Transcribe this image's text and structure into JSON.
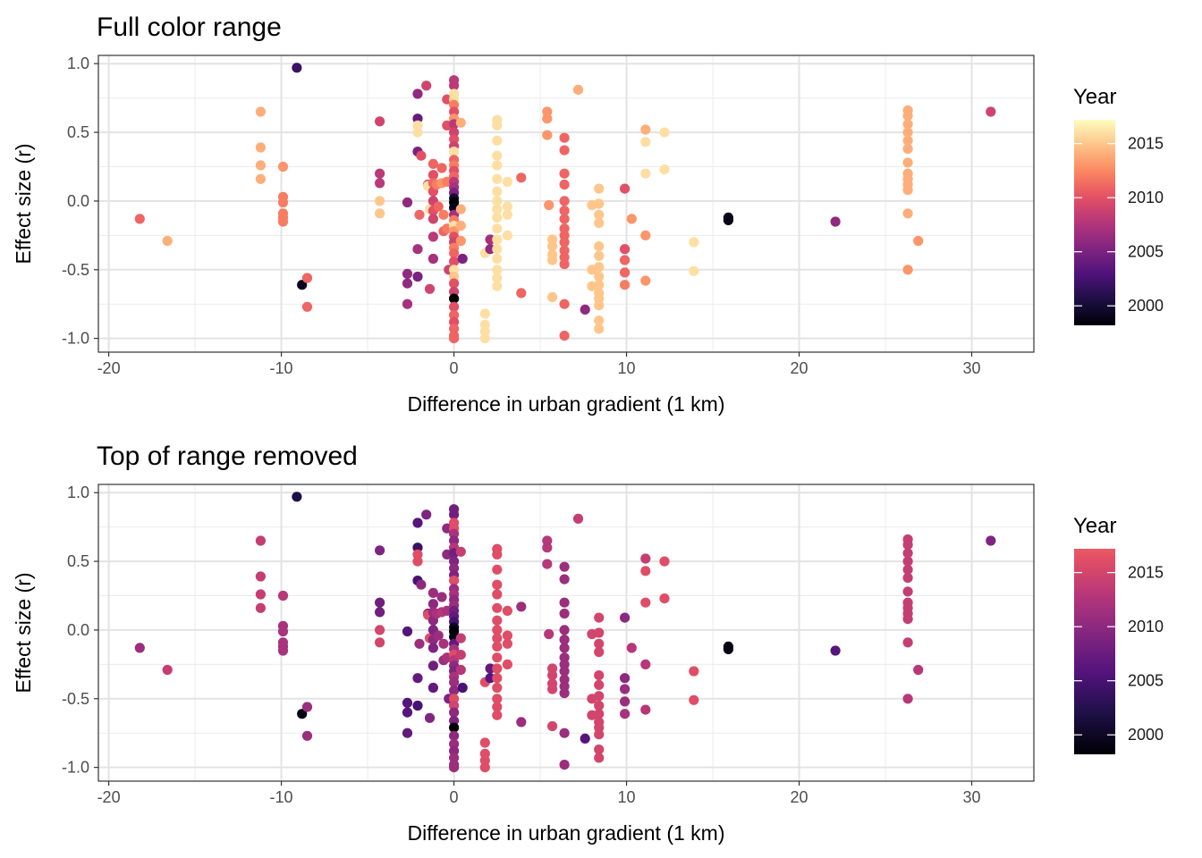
{
  "chart_data": [
    {
      "type": "scatter",
      "title": "Full color range",
      "xlabel": "Difference in urban gradient (1 km)",
      "ylabel": "Effect size (r)",
      "xlim": [
        -20.6,
        33.6
      ],
      "ylim": [
        -1.1,
        1.06
      ],
      "x_ticks": [
        "-20",
        "-10",
        "0",
        "10",
        "20",
        "30"
      ],
      "y_ticks": [
        "-1.0",
        "-0.5",
        "0.0",
        "0.5",
        "1.0"
      ],
      "grid": true,
      "legend": {
        "title": "Year",
        "position": "right",
        "ticks": [
          "2000",
          "2005",
          "2010",
          "2015"
        ],
        "range": [
          1998.2,
          2017.2
        ],
        "palette": "magma",
        "palette_end": 1.0
      },
      "points": [
        {
          "x": -18.2,
          "y": -0.13,
          "year": 2011
        },
        {
          "x": -16.6,
          "y": -0.29,
          "year": 2014
        },
        {
          "x": -11.2,
          "y": 0.65,
          "year": 2014
        },
        {
          "x": -11.2,
          "y": 0.39,
          "year": 2014
        },
        {
          "x": -11.2,
          "y": 0.26,
          "year": 2014
        },
        {
          "x": -11.2,
          "y": 0.16,
          "year": 2014
        },
        {
          "x": -9.9,
          "y": 0.25,
          "year": 2013
        },
        {
          "x": -9.9,
          "y": 0.03,
          "year": 2012
        },
        {
          "x": -9.9,
          "y": -0.01,
          "year": 2012
        },
        {
          "x": -9.9,
          "y": -0.09,
          "year": 2012
        },
        {
          "x": -9.9,
          "y": -0.12,
          "year": 2012
        },
        {
          "x": -9.9,
          "y": -0.15,
          "year": 2012
        },
        {
          "x": -9.1,
          "y": 0.97,
          "year": 2002
        },
        {
          "x": -8.8,
          "y": -0.61,
          "year": 1999
        },
        {
          "x": -8.5,
          "y": -0.56,
          "year": 2011
        },
        {
          "x": -8.5,
          "y": -0.77,
          "year": 2011
        },
        {
          "x": -4.3,
          "y": 0.58,
          "year": 2009
        },
        {
          "x": -4.3,
          "y": 0.2,
          "year": 2008
        },
        {
          "x": -4.3,
          "y": 0.13,
          "year": 2008
        },
        {
          "x": -4.3,
          "y": 0.0,
          "year": 2015
        },
        {
          "x": -4.3,
          "y": -0.09,
          "year": 2015
        },
        {
          "x": -2.7,
          "y": -0.01,
          "year": 2006
        },
        {
          "x": -2.7,
          "y": -0.53,
          "year": 2006
        },
        {
          "x": -2.7,
          "y": -0.6,
          "year": 2006
        },
        {
          "x": -2.7,
          "y": -0.75,
          "year": 2007
        },
        {
          "x": -2.1,
          "y": 0.78,
          "year": 2006
        },
        {
          "x": -2.1,
          "y": 0.6,
          "year": 2004
        },
        {
          "x": -2.1,
          "y": 0.55,
          "year": 2016
        },
        {
          "x": -2.1,
          "y": 0.5,
          "year": 2016
        },
        {
          "x": -2.1,
          "y": 0.36,
          "year": 2005
        },
        {
          "x": -2.1,
          "y": -0.35,
          "year": 2007
        },
        {
          "x": -2.1,
          "y": -0.55,
          "year": 2005
        },
        {
          "x": -2.0,
          "y": -0.1,
          "year": 2011
        },
        {
          "x": -1.9,
          "y": 0.33,
          "year": 2010
        },
        {
          "x": -1.6,
          "y": 0.84,
          "year": 2009
        },
        {
          "x": -1.5,
          "y": 0.12,
          "year": 2009
        },
        {
          "x": -1.5,
          "y": 0.11,
          "year": 2016
        },
        {
          "x": -1.4,
          "y": -0.06,
          "year": 2016
        },
        {
          "x": -1.4,
          "y": -0.64,
          "year": 2009
        },
        {
          "x": -1.2,
          "y": 0.27,
          "year": 2011
        },
        {
          "x": -1.2,
          "y": 0.19,
          "year": 2010
        },
        {
          "x": -1.2,
          "y": 0.13,
          "year": 2011
        },
        {
          "x": -1.2,
          "y": 0.07,
          "year": 2010
        },
        {
          "x": -1.2,
          "y": 0.0,
          "year": 2009
        },
        {
          "x": -1.2,
          "y": -0.07,
          "year": 2010
        },
        {
          "x": -1.2,
          "y": -0.13,
          "year": 2009
        },
        {
          "x": -1.2,
          "y": -0.26,
          "year": 2008
        },
        {
          "x": -1.2,
          "y": -0.42,
          "year": 2007
        },
        {
          "x": -1.0,
          "y": 0.12,
          "year": 2012
        },
        {
          "x": -0.9,
          "y": -0.04,
          "year": 2011
        },
        {
          "x": -0.7,
          "y": 0.24,
          "year": 2011
        },
        {
          "x": -0.7,
          "y": 0.13,
          "year": 2013
        },
        {
          "x": -0.6,
          "y": -0.1,
          "year": 2012
        },
        {
          "x": -0.6,
          "y": -0.22,
          "year": 2011
        },
        {
          "x": -0.4,
          "y": 0.74,
          "year": 2010
        },
        {
          "x": -0.4,
          "y": 0.55,
          "year": 2010
        },
        {
          "x": -0.4,
          "y": 0.14,
          "year": 2012
        },
        {
          "x": -0.4,
          "y": -0.2,
          "year": 2012
        },
        {
          "x": -0.3,
          "y": -0.5,
          "year": 2009
        },
        {
          "x": 0.0,
          "y": 0.88,
          "year": 2008
        },
        {
          "x": 0.0,
          "y": 0.84,
          "year": 2008
        },
        {
          "x": 0.0,
          "y": 0.78,
          "year": 2016
        },
        {
          "x": 0.0,
          "y": 0.74,
          "year": 2016
        },
        {
          "x": 0.0,
          "y": 0.7,
          "year": 2012
        },
        {
          "x": 0.0,
          "y": 0.65,
          "year": 2010
        },
        {
          "x": 0.0,
          "y": 0.6,
          "year": 2013
        },
        {
          "x": 0.0,
          "y": 0.56,
          "year": 2008
        },
        {
          "x": 0.0,
          "y": 0.5,
          "year": 2009
        },
        {
          "x": 0.0,
          "y": 0.45,
          "year": 2010
        },
        {
          "x": 0.0,
          "y": 0.4,
          "year": 2009
        },
        {
          "x": 0.0,
          "y": 0.36,
          "year": 2016
        },
        {
          "x": 0.0,
          "y": 0.3,
          "year": 2011
        },
        {
          "x": 0.0,
          "y": 0.26,
          "year": 2012
        },
        {
          "x": 0.0,
          "y": 0.22,
          "year": 2010
        },
        {
          "x": 0.0,
          "y": 0.18,
          "year": 2011
        },
        {
          "x": 0.0,
          "y": 0.14,
          "year": 2008
        },
        {
          "x": 0.0,
          "y": 0.1,
          "year": 2007
        },
        {
          "x": 0.0,
          "y": 0.06,
          "year": 2005
        },
        {
          "x": 0.0,
          "y": 0.02,
          "year": 2000
        },
        {
          "x": 0.0,
          "y": -0.01,
          "year": 1998
        },
        {
          "x": 0.0,
          "y": -0.05,
          "year": 1999
        },
        {
          "x": 0.0,
          "y": -0.1,
          "year": 2007
        },
        {
          "x": 0.0,
          "y": -0.14,
          "year": 2012
        },
        {
          "x": 0.0,
          "y": -0.18,
          "year": 2016
        },
        {
          "x": 0.0,
          "y": -0.22,
          "year": 2013
        },
        {
          "x": 0.0,
          "y": -0.26,
          "year": 2010
        },
        {
          "x": 0.0,
          "y": -0.3,
          "year": 2009
        },
        {
          "x": 0.0,
          "y": -0.34,
          "year": 2012
        },
        {
          "x": 0.0,
          "y": -0.38,
          "year": 2011
        },
        {
          "x": 0.0,
          "y": -0.44,
          "year": 2010
        },
        {
          "x": 0.0,
          "y": -0.5,
          "year": 2016
        },
        {
          "x": 0.0,
          "y": -0.55,
          "year": 2015
        },
        {
          "x": 0.0,
          "y": -0.6,
          "year": 2010
        },
        {
          "x": 0.0,
          "y": -0.66,
          "year": 2009
        },
        {
          "x": 0.0,
          "y": -0.71,
          "year": 1998
        },
        {
          "x": 0.0,
          "y": -0.77,
          "year": 2010
        },
        {
          "x": 0.0,
          "y": -0.83,
          "year": 2011
        },
        {
          "x": 0.0,
          "y": -0.88,
          "year": 2010
        },
        {
          "x": 0.0,
          "y": -0.93,
          "year": 2011
        },
        {
          "x": 0.0,
          "y": -0.98,
          "year": 2011
        },
        {
          "x": 0.0,
          "y": -1.0,
          "year": 2011
        },
        {
          "x": 0.4,
          "y": 0.57,
          "year": 2014
        },
        {
          "x": 0.4,
          "y": -0.06,
          "year": 2014
        },
        {
          "x": 0.4,
          "y": -0.18,
          "year": 2014
        },
        {
          "x": 0.4,
          "y": -0.29,
          "year": 2013
        },
        {
          "x": 0.5,
          "y": -0.42,
          "year": 2005
        },
        {
          "x": 1.8,
          "y": -0.38,
          "year": 2016
        },
        {
          "x": 1.8,
          "y": -0.82,
          "year": 2016
        },
        {
          "x": 1.8,
          "y": -0.9,
          "year": 2016
        },
        {
          "x": 1.8,
          "y": -0.95,
          "year": 2016
        },
        {
          "x": 1.8,
          "y": -1.0,
          "year": 2016
        },
        {
          "x": 2.1,
          "y": -0.28,
          "year": 2007
        },
        {
          "x": 2.1,
          "y": -0.35,
          "year": 2006
        },
        {
          "x": 2.5,
          "y": 0.59,
          "year": 2016
        },
        {
          "x": 2.5,
          "y": 0.55,
          "year": 2016
        },
        {
          "x": 2.5,
          "y": 0.44,
          "year": 2016
        },
        {
          "x": 2.5,
          "y": 0.33,
          "year": 2016
        },
        {
          "x": 2.5,
          "y": 0.26,
          "year": 2016
        },
        {
          "x": 2.5,
          "y": 0.16,
          "year": 2016
        },
        {
          "x": 2.5,
          "y": 0.07,
          "year": 2016
        },
        {
          "x": 2.5,
          "y": 0.0,
          "year": 2016
        },
        {
          "x": 2.5,
          "y": -0.06,
          "year": 2016
        },
        {
          "x": 2.5,
          "y": -0.12,
          "year": 2016
        },
        {
          "x": 2.5,
          "y": -0.2,
          "year": 2016
        },
        {
          "x": 2.5,
          "y": -0.28,
          "year": 2016
        },
        {
          "x": 2.5,
          "y": -0.35,
          "year": 2016
        },
        {
          "x": 2.5,
          "y": -0.42,
          "year": 2016
        },
        {
          "x": 2.5,
          "y": -0.5,
          "year": 2016
        },
        {
          "x": 2.5,
          "y": -0.56,
          "year": 2016
        },
        {
          "x": 2.5,
          "y": -0.62,
          "year": 2016
        },
        {
          "x": 3.1,
          "y": 0.14,
          "year": 2016
        },
        {
          "x": 3.1,
          "y": -0.04,
          "year": 2016
        },
        {
          "x": 3.1,
          "y": -0.1,
          "year": 2016
        },
        {
          "x": 3.1,
          "y": -0.25,
          "year": 2016
        },
        {
          "x": 3.9,
          "y": 0.17,
          "year": 2011
        },
        {
          "x": 3.9,
          "y": -0.67,
          "year": 2011
        },
        {
          "x": 5.4,
          "y": 0.65,
          "year": 2013
        },
        {
          "x": 5.4,
          "y": 0.6,
          "year": 2013
        },
        {
          "x": 5.4,
          "y": 0.48,
          "year": 2013
        },
        {
          "x": 5.5,
          "y": -0.03,
          "year": 2013
        },
        {
          "x": 5.7,
          "y": -0.28,
          "year": 2015
        },
        {
          "x": 5.7,
          "y": -0.33,
          "year": 2015
        },
        {
          "x": 5.7,
          "y": -0.39,
          "year": 2015
        },
        {
          "x": 5.7,
          "y": -0.43,
          "year": 2015
        },
        {
          "x": 5.7,
          "y": -0.7,
          "year": 2015
        },
        {
          "x": 6.4,
          "y": 0.46,
          "year": 2011
        },
        {
          "x": 6.4,
          "y": 0.37,
          "year": 2011
        },
        {
          "x": 6.4,
          "y": 0.2,
          "year": 2011
        },
        {
          "x": 6.4,
          "y": 0.12,
          "year": 2011
        },
        {
          "x": 6.4,
          "y": 0.0,
          "year": 2011
        },
        {
          "x": 6.4,
          "y": -0.07,
          "year": 2011
        },
        {
          "x": 6.4,
          "y": -0.13,
          "year": 2011
        },
        {
          "x": 6.4,
          "y": -0.2,
          "year": 2011
        },
        {
          "x": 6.4,
          "y": -0.25,
          "year": 2011
        },
        {
          "x": 6.4,
          "y": -0.3,
          "year": 2011
        },
        {
          "x": 6.4,
          "y": -0.36,
          "year": 2011
        },
        {
          "x": 6.4,
          "y": -0.41,
          "year": 2011
        },
        {
          "x": 6.4,
          "y": -0.46,
          "year": 2011
        },
        {
          "x": 6.4,
          "y": -0.75,
          "year": 2011
        },
        {
          "x": 6.4,
          "y": -0.98,
          "year": 2011
        },
        {
          "x": 7.2,
          "y": 0.81,
          "year": 2014
        },
        {
          "x": 7.6,
          "y": -0.79,
          "year": 2006
        },
        {
          "x": 8.0,
          "y": -0.03,
          "year": 2015
        },
        {
          "x": 8.0,
          "y": -0.5,
          "year": 2015
        },
        {
          "x": 8.0,
          "y": -0.62,
          "year": 2015
        },
        {
          "x": 8.4,
          "y": 0.09,
          "year": 2015
        },
        {
          "x": 8.4,
          "y": -0.02,
          "year": 2015
        },
        {
          "x": 8.4,
          "y": -0.1,
          "year": 2015
        },
        {
          "x": 8.4,
          "y": -0.16,
          "year": 2015
        },
        {
          "x": 8.4,
          "y": -0.33,
          "year": 2015
        },
        {
          "x": 8.4,
          "y": -0.4,
          "year": 2015
        },
        {
          "x": 8.4,
          "y": -0.48,
          "year": 2015
        },
        {
          "x": 8.4,
          "y": -0.55,
          "year": 2015
        },
        {
          "x": 8.4,
          "y": -0.61,
          "year": 2015
        },
        {
          "x": 8.4,
          "y": -0.67,
          "year": 2015
        },
        {
          "x": 8.4,
          "y": -0.71,
          "year": 2015
        },
        {
          "x": 8.4,
          "y": -0.76,
          "year": 2015
        },
        {
          "x": 8.4,
          "y": -0.87,
          "year": 2015
        },
        {
          "x": 8.4,
          "y": -0.93,
          "year": 2015
        },
        {
          "x": 9.9,
          "y": 0.09,
          "year": 2010
        },
        {
          "x": 9.9,
          "y": -0.35,
          "year": 2010
        },
        {
          "x": 9.9,
          "y": -0.43,
          "year": 2011
        },
        {
          "x": 9.9,
          "y": -0.52,
          "year": 2011
        },
        {
          "x": 9.9,
          "y": -0.61,
          "year": 2012
        },
        {
          "x": 10.3,
          "y": -0.13,
          "year": 2013
        },
        {
          "x": 11.1,
          "y": 0.52,
          "year": 2014
        },
        {
          "x": 11.1,
          "y": 0.43,
          "year": 2016
        },
        {
          "x": 11.1,
          "y": 0.2,
          "year": 2016
        },
        {
          "x": 11.1,
          "y": -0.25,
          "year": 2013
        },
        {
          "x": 11.1,
          "y": -0.58,
          "year": 2013
        },
        {
          "x": 12.2,
          "y": 0.5,
          "year": 2016
        },
        {
          "x": 12.2,
          "y": 0.23,
          "year": 2016
        },
        {
          "x": 13.9,
          "y": -0.3,
          "year": 2016
        },
        {
          "x": 13.9,
          "y": -0.51,
          "year": 2016
        },
        {
          "x": 15.9,
          "y": -0.12,
          "year": 1999
        },
        {
          "x": 15.9,
          "y": -0.14,
          "year": 1999
        },
        {
          "x": 22.1,
          "y": -0.15,
          "year": 2006
        },
        {
          "x": 26.3,
          "y": 0.66,
          "year": 2014
        },
        {
          "x": 26.3,
          "y": 0.62,
          "year": 2014
        },
        {
          "x": 26.3,
          "y": 0.56,
          "year": 2014
        },
        {
          "x": 26.3,
          "y": 0.5,
          "year": 2014
        },
        {
          "x": 26.3,
          "y": 0.44,
          "year": 2014
        },
        {
          "x": 26.3,
          "y": 0.38,
          "year": 2014
        },
        {
          "x": 26.3,
          "y": 0.28,
          "year": 2014
        },
        {
          "x": 26.3,
          "y": 0.2,
          "year": 2014
        },
        {
          "x": 26.3,
          "y": 0.16,
          "year": 2014
        },
        {
          "x": 26.3,
          "y": 0.12,
          "year": 2014
        },
        {
          "x": 26.3,
          "y": 0.08,
          "year": 2014
        },
        {
          "x": 26.3,
          "y": -0.09,
          "year": 2014
        },
        {
          "x": 26.3,
          "y": -0.5,
          "year": 2013
        },
        {
          "x": 26.9,
          "y": -0.29,
          "year": 2013
        },
        {
          "x": 31.1,
          "y": 0.65,
          "year": 2009
        }
      ]
    },
    {
      "type": "scatter",
      "title": "Top of range removed",
      "xlabel": "Difference in urban gradient (1 km)",
      "ylabel": "Effect size (r)",
      "xlim": [
        -20.6,
        33.6
      ],
      "ylim": [
        -1.1,
        1.06
      ],
      "x_ticks": [
        "-20",
        "-10",
        "0",
        "10",
        "20",
        "30"
      ],
      "y_ticks": [
        "-1.0",
        "-0.5",
        "0.0",
        "0.5",
        "1.0"
      ],
      "grid": true,
      "legend": {
        "title": "Year",
        "position": "right",
        "ticks": [
          "2000",
          "2005",
          "2010",
          "2015"
        ],
        "range": [
          1998.2,
          2017.2
        ],
        "palette": "magma",
        "palette_end": 0.65
      },
      "points_same_as_first": true
    }
  ]
}
